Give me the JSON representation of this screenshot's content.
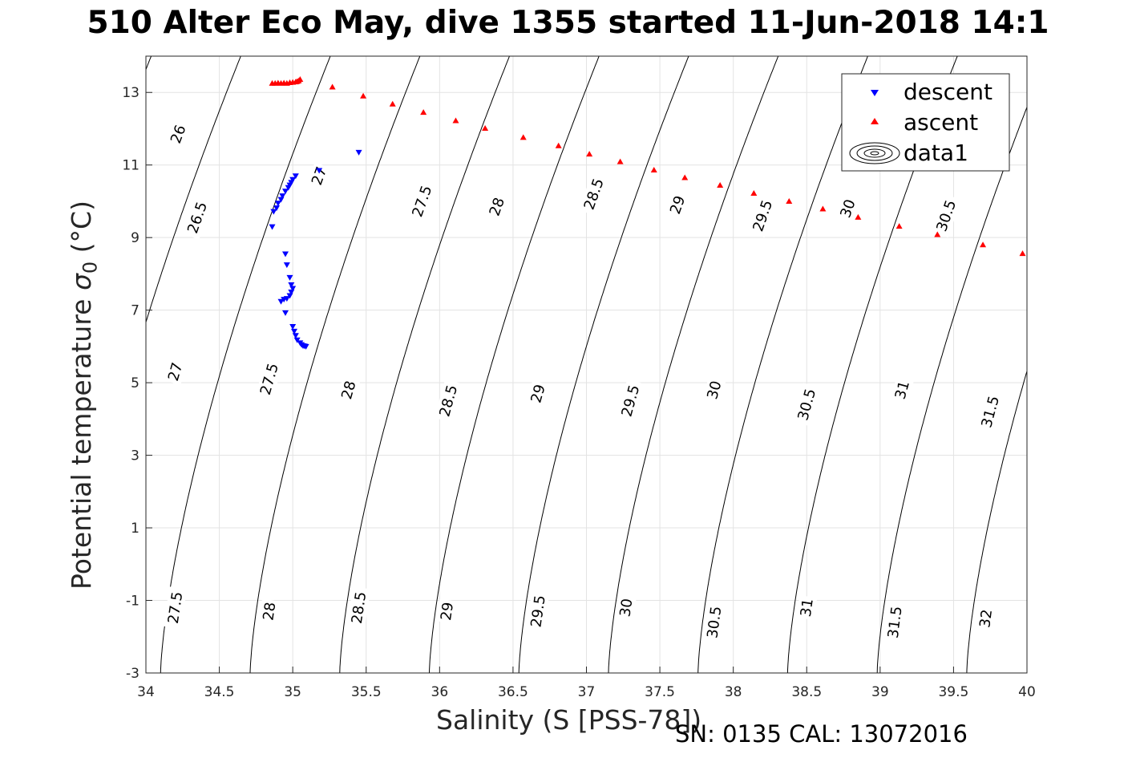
{
  "title": "510 Alter Eco May, dive 1355 started 11-Jun-2018 14:1",
  "footnote": "SN: 0135  CAL: 13072016",
  "chart_data": {
    "type": "scatter",
    "xlabel": "Salinity (S [PSS-78])",
    "ylabel": "Potential temperature",
    "ylabel_symbol": "σ",
    "ylabel_subscript": "0",
    "ylabel_unit": " (°C)",
    "xlim": [
      34,
      40
    ],
    "ylim": [
      -3,
      14
    ],
    "xticks": [
      34,
      34.5,
      35,
      35.5,
      36,
      36.5,
      37,
      37.5,
      38,
      38.5,
      39,
      39.5,
      40
    ],
    "xtick_labels": [
      "34",
      "34.5",
      "35",
      "35.5",
      "36",
      "36.5",
      "37",
      "37.5",
      "38",
      "38.5",
      "39",
      "39.5",
      "40"
    ],
    "yticks": [
      -3,
      -1,
      1,
      3,
      5,
      7,
      9,
      11,
      13
    ],
    "ytick_labels": [
      "-3",
      "-1",
      "1",
      "3",
      "5",
      "7",
      "9",
      "11",
      "13"
    ],
    "grid": true,
    "legend_position": "top-right",
    "legend": [
      {
        "label": "descent",
        "marker": "triangle-down",
        "color": "#0000ff"
      },
      {
        "label": "ascent",
        "marker": "triangle-up",
        "color": "#ff0000"
      },
      {
        "label": "data1",
        "marker": "contour",
        "color": "#000000"
      }
    ],
    "series": [
      {
        "name": "descent",
        "marker": "triangle-down",
        "color": "#0000ff",
        "points": [
          [
            35.45,
            11.35
          ],
          [
            35.18,
            10.85
          ],
          [
            35.02,
            10.7
          ],
          [
            35.0,
            10.6
          ],
          [
            34.99,
            10.52
          ],
          [
            34.98,
            10.45
          ],
          [
            34.97,
            10.38
          ],
          [
            34.95,
            10.28
          ],
          [
            34.93,
            10.15
          ],
          [
            34.92,
            10.05
          ],
          [
            34.9,
            9.95
          ],
          [
            34.89,
            9.82
          ],
          [
            34.87,
            9.72
          ],
          [
            34.86,
            9.3
          ],
          [
            34.95,
            8.55
          ],
          [
            34.96,
            8.25
          ],
          [
            34.98,
            7.9
          ],
          [
            34.99,
            7.7
          ],
          [
            35.0,
            7.6
          ],
          [
            34.99,
            7.5
          ],
          [
            34.98,
            7.4
          ],
          [
            34.96,
            7.32
          ],
          [
            34.94,
            7.3
          ],
          [
            34.92,
            7.24
          ],
          [
            34.95,
            6.93
          ],
          [
            35.0,
            6.55
          ],
          [
            35.01,
            6.42
          ],
          [
            35.02,
            6.3
          ],
          [
            35.03,
            6.18
          ],
          [
            35.05,
            6.1
          ],
          [
            35.06,
            6.05
          ],
          [
            35.07,
            6.02
          ],
          [
            35.08,
            6.01
          ],
          [
            35.09,
            6.0
          ]
        ]
      },
      {
        "name": "ascent",
        "marker": "triangle-up",
        "color": "#ff0000",
        "points": [
          [
            34.86,
            13.25
          ],
          [
            34.88,
            13.25
          ],
          [
            34.9,
            13.26
          ],
          [
            34.92,
            13.25
          ],
          [
            34.94,
            13.26
          ],
          [
            34.96,
            13.25
          ],
          [
            34.98,
            13.27
          ],
          [
            35.0,
            13.28
          ],
          [
            35.02,
            13.29
          ],
          [
            35.03,
            13.3
          ],
          [
            35.04,
            13.32
          ],
          [
            35.05,
            13.36
          ],
          [
            35.27,
            13.15
          ],
          [
            35.48,
            12.9
          ],
          [
            35.68,
            12.68
          ],
          [
            35.89,
            12.45
          ],
          [
            36.11,
            12.22
          ],
          [
            36.31,
            12.01
          ],
          [
            36.57,
            11.76
          ],
          [
            36.81,
            11.53
          ],
          [
            37.02,
            11.3
          ],
          [
            37.23,
            11.09
          ],
          [
            37.46,
            10.86
          ],
          [
            37.67,
            10.65
          ],
          [
            37.91,
            10.44
          ],
          [
            38.14,
            10.22
          ],
          [
            38.38,
            10.0
          ],
          [
            38.61,
            9.79
          ],
          [
            38.85,
            9.56
          ],
          [
            39.13,
            9.31
          ],
          [
            39.39,
            9.08
          ],
          [
            39.7,
            8.8
          ],
          [
            39.97,
            8.56
          ]
        ]
      },
      {
        "name": "data1",
        "type": "contour",
        "levels": [
          26,
          26.5,
          27,
          27.5,
          28,
          28.5,
          29,
          29.5,
          30,
          30.5,
          31,
          31.5,
          32
        ],
        "level_labels": [
          {
            "text": "26",
            "x": 34.22,
            "y": 11.85
          },
          {
            "text": "26.5",
            "x": 34.35,
            "y": 9.55
          },
          {
            "text": "27",
            "x": 35.18,
            "y": 10.7
          },
          {
            "text": "27",
            "x": 34.2,
            "y": 5.3
          },
          {
            "text": "27.5",
            "x": 35.88,
            "y": 10.0
          },
          {
            "text": "27.5",
            "x": 34.84,
            "y": 5.1
          },
          {
            "text": "27.5",
            "x": 34.2,
            "y": -1.2
          },
          {
            "text": "28",
            "x": 36.39,
            "y": 9.85
          },
          {
            "text": "28",
            "x": 35.38,
            "y": 4.8
          },
          {
            "text": "28",
            "x": 34.84,
            "y": -1.3
          },
          {
            "text": "28.5",
            "x": 37.05,
            "y": 10.2
          },
          {
            "text": "28.5",
            "x": 36.06,
            "y": 4.5
          },
          {
            "text": "28.5",
            "x": 35.45,
            "y": -1.2
          },
          {
            "text": "29",
            "x": 37.62,
            "y": 9.9
          },
          {
            "text": "29",
            "x": 36.67,
            "y": 4.7
          },
          {
            "text": "29",
            "x": 36.05,
            "y": -1.3
          },
          {
            "text": "29.5",
            "x": 38.2,
            "y": 9.6
          },
          {
            "text": "29.5",
            "x": 37.3,
            "y": 4.5
          },
          {
            "text": "29.5",
            "x": 36.67,
            "y": -1.3
          },
          {
            "text": "30",
            "x": 38.78,
            "y": 9.8
          },
          {
            "text": "30",
            "x": 37.87,
            "y": 4.8
          },
          {
            "text": "30",
            "x": 37.27,
            "y": -1.2
          },
          {
            "text": "30.5",
            "x": 39.45,
            "y": 9.6
          },
          {
            "text": "30.5",
            "x": 38.5,
            "y": 4.4
          },
          {
            "text": "30.5",
            "x": 37.87,
            "y": -1.6
          },
          {
            "text": "31",
            "x": 39.15,
            "y": 4.8
          },
          {
            "text": "31",
            "x": 38.5,
            "y": -1.2
          },
          {
            "text": "31.5",
            "x": 39.75,
            "y": 4.2
          },
          {
            "text": "31.5",
            "x": 39.1,
            "y": -1.6
          },
          {
            "text": "32",
            "x": 39.72,
            "y": -1.5
          }
        ]
      }
    ]
  }
}
